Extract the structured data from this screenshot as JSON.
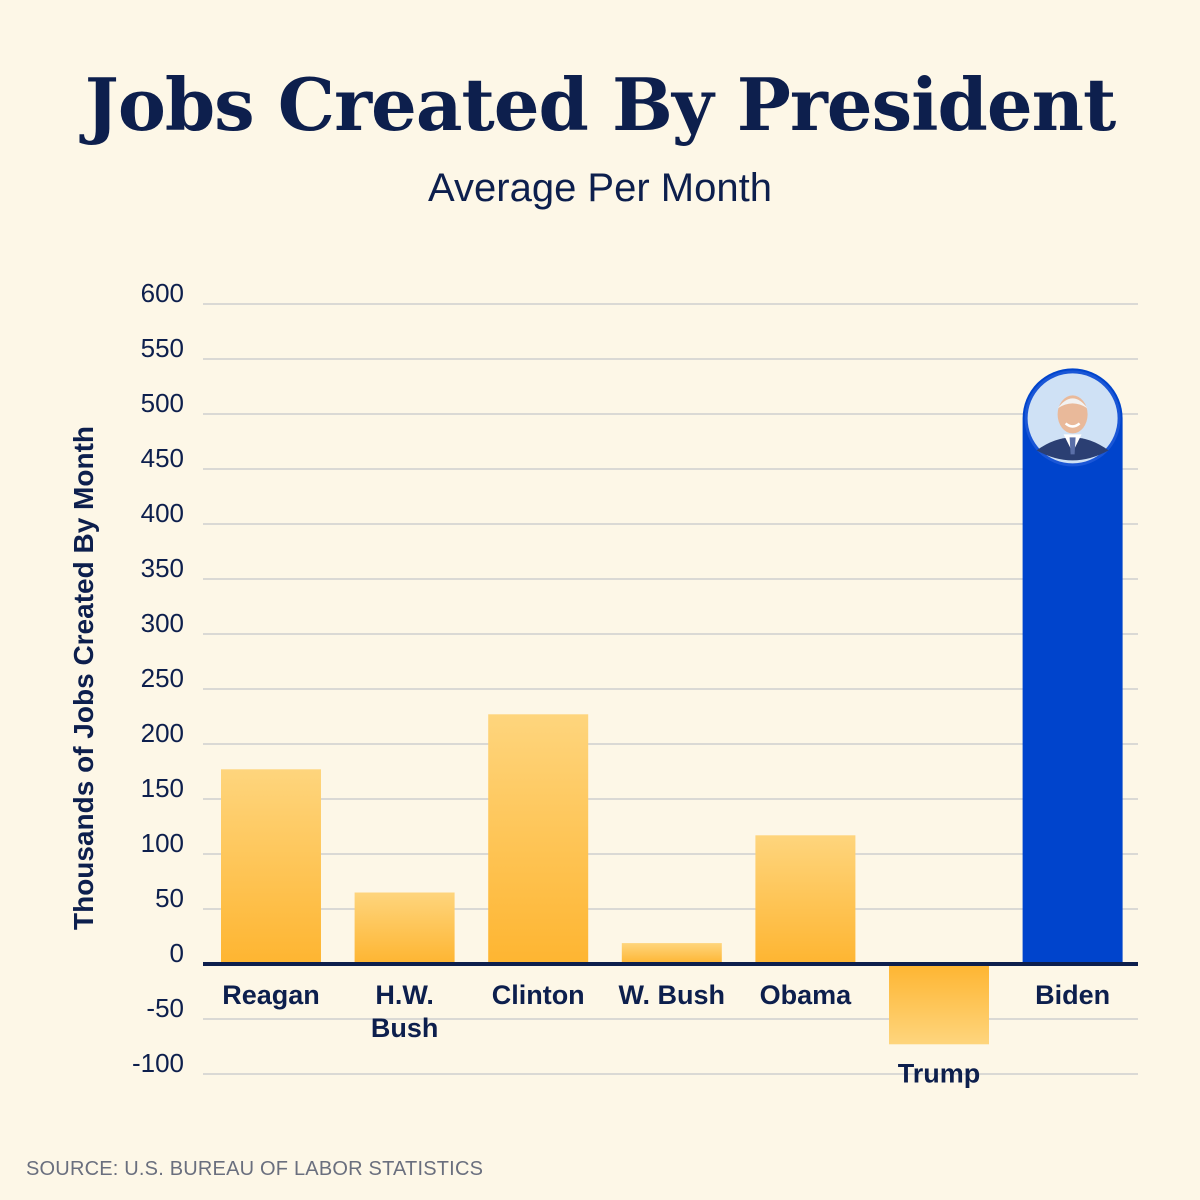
{
  "chart_data": {
    "type": "bar",
    "title": "Jobs Created By President",
    "subtitle": "Average Per Month",
    "ylabel": "Thousands of Jobs Created By Month",
    "xlabel": "",
    "ylim": [
      -100,
      600
    ],
    "yticks": [
      600,
      550,
      500,
      450,
      400,
      350,
      300,
      250,
      200,
      150,
      100,
      50,
      0,
      -50,
      -100
    ],
    "grid": true,
    "categories": [
      "Reagan",
      "H.W. Bush",
      "Clinton",
      "W. Bush",
      "Obama",
      "Trump",
      "Biden"
    ],
    "category_labels": [
      [
        "Reagan"
      ],
      [
        "H.W.",
        "Bush"
      ],
      [
        "Clinton"
      ],
      [
        "W. Bush"
      ],
      [
        "Obama"
      ],
      [
        "Trump"
      ],
      [
        "Biden"
      ]
    ],
    "values": [
      177,
      65,
      227,
      19,
      117,
      -73,
      496
    ],
    "colors": {
      "default_bar_top": "#fed57d",
      "default_bar_bottom": "#feb531",
      "highlight_bar": "#0044cc",
      "grid": "#cfcfcf",
      "axis": "#0d1f4d",
      "text": "#0d1f4d"
    },
    "highlight": "Biden",
    "highlight_icon": "president-portrait-icon"
  },
  "source": "SOURCE: U.S. BUREAU OF LABOR STATISTICS"
}
